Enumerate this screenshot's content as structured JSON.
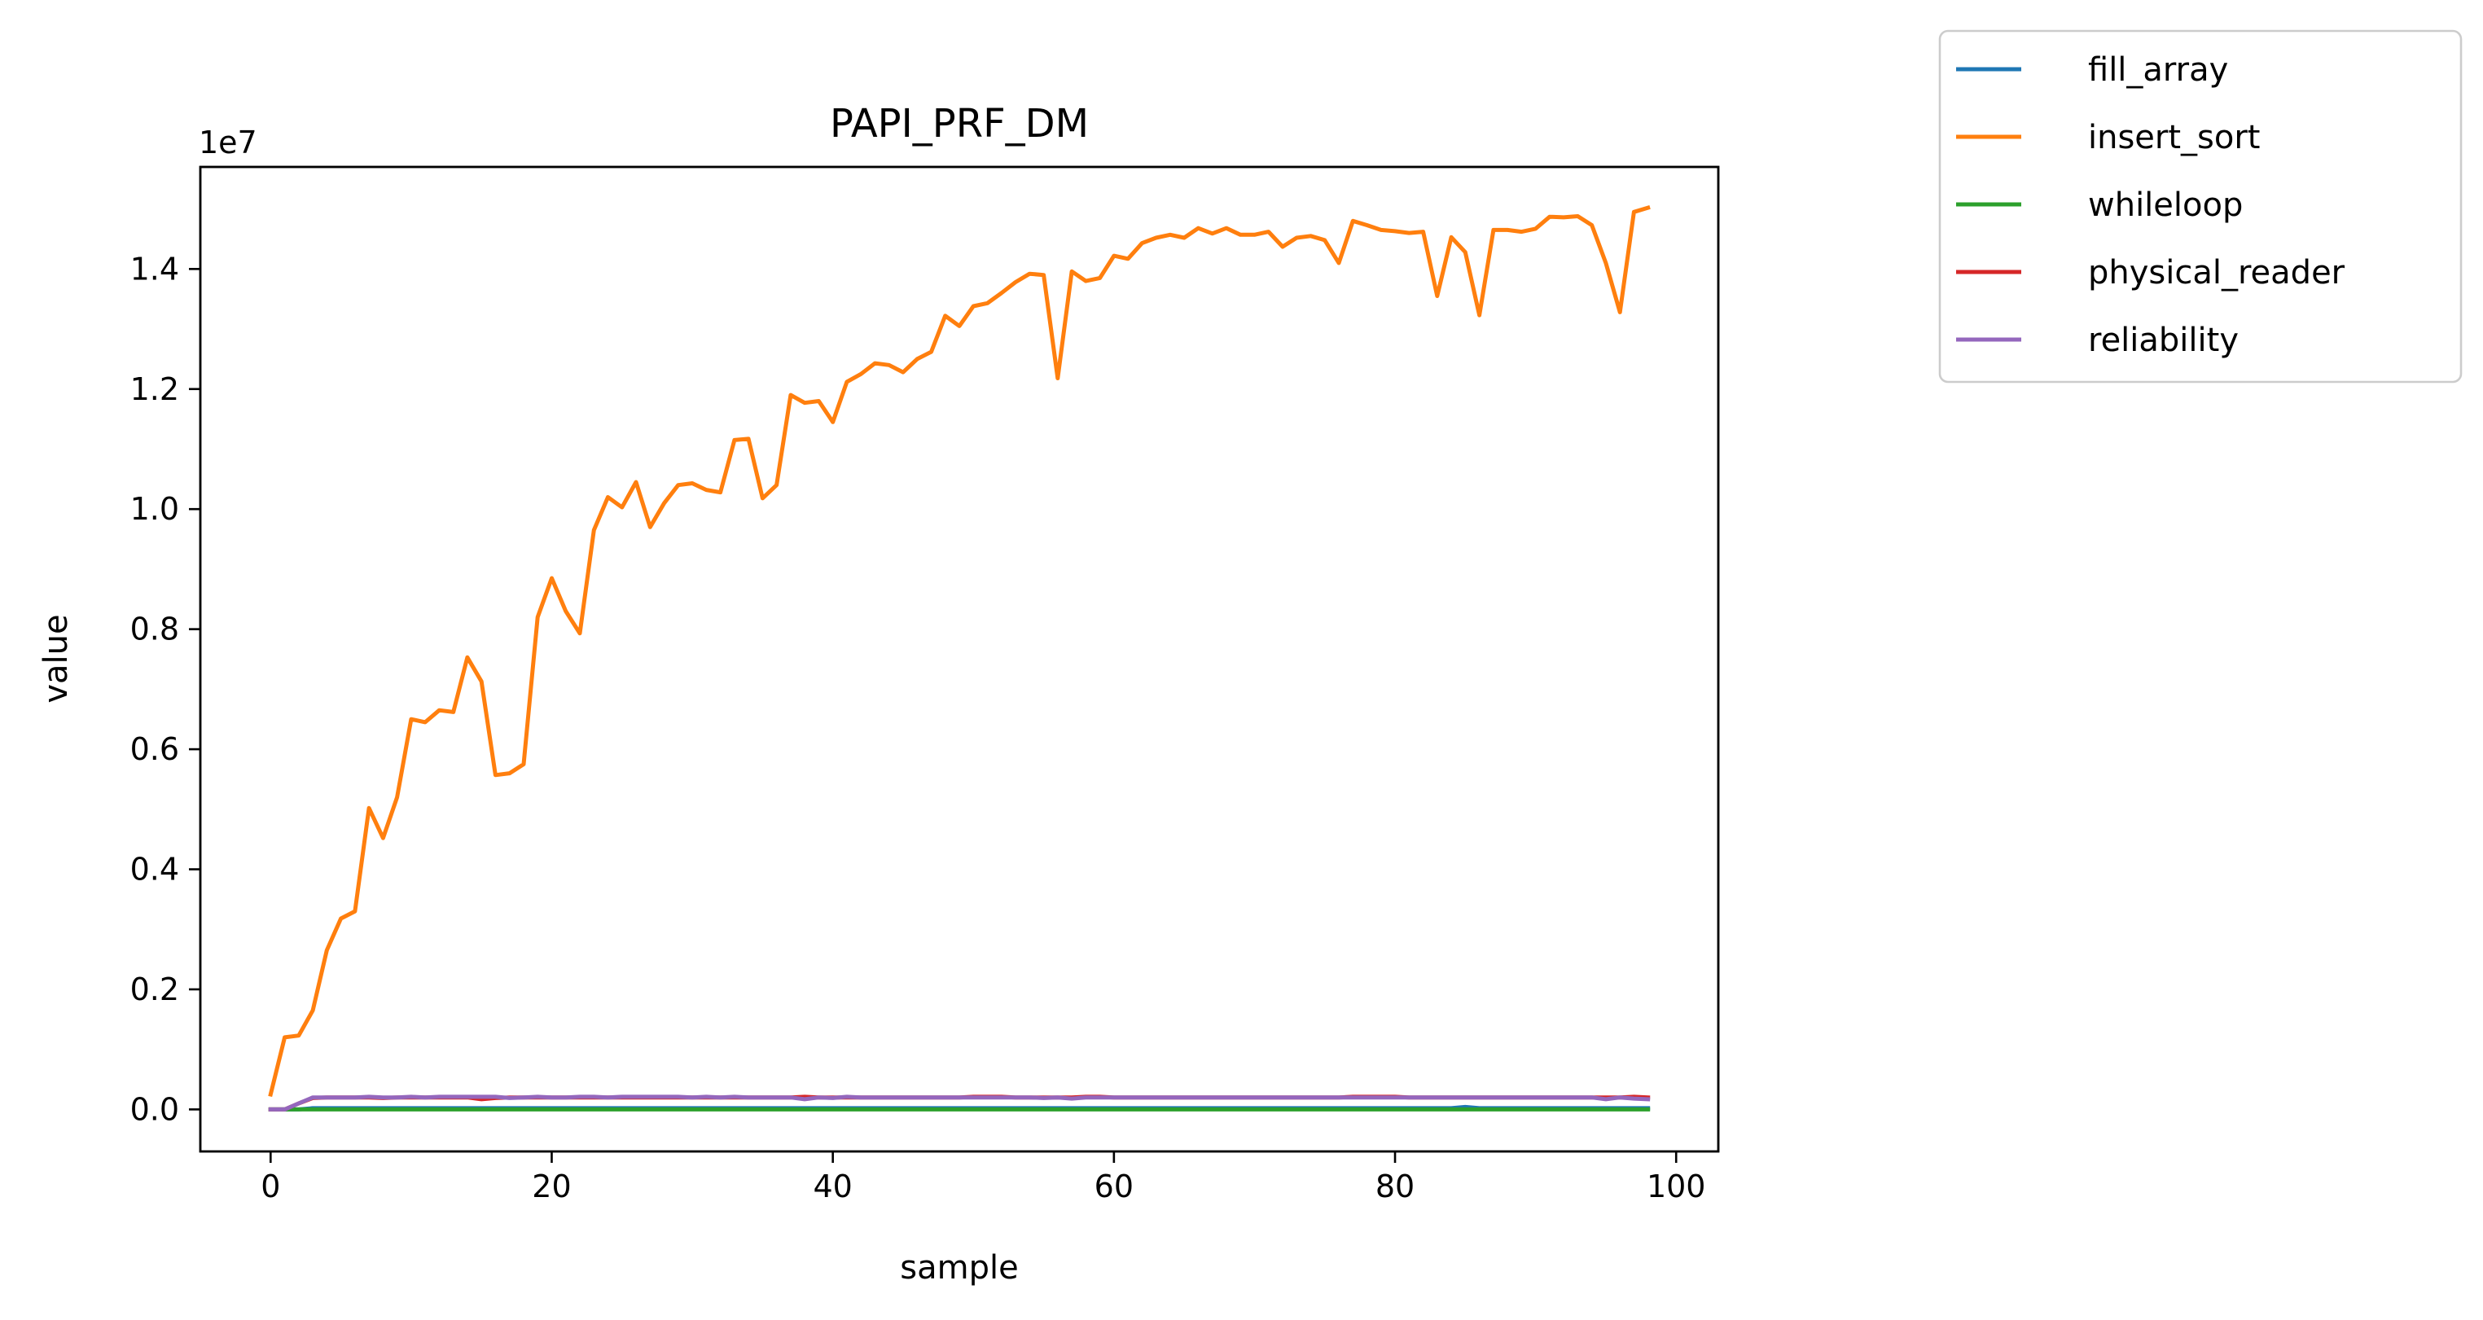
{
  "chart_data": {
    "type": "line",
    "title": "PAPI_PRF_DM",
    "xlabel": "sample",
    "ylabel": "value",
    "y_offset_label": "1e7",
    "xlim": [
      -5,
      103
    ],
    "ylim": [
      -0.07,
      1.57
    ],
    "y_scale": 10000000,
    "xticks": [
      0,
      20,
      40,
      60,
      80,
      100
    ],
    "xtick_labels": [
      "0",
      "20",
      "40",
      "60",
      "80",
      "100"
    ],
    "yticks": [
      0.0,
      0.2,
      0.4,
      0.6,
      0.8,
      1.0,
      1.2,
      1.4
    ],
    "ytick_labels": [
      "0.0",
      "0.2",
      "0.4",
      "0.6",
      "0.8",
      "1.0",
      "1.2",
      "1.4"
    ],
    "grid": false,
    "legend_position": "outside-top-right",
    "series": [
      {
        "name": "fill_array",
        "color": "#1f77b4",
        "x_start": 0,
        "x_step": 1,
        "values": [
          0.0,
          0.0,
          0.0,
          0.002,
          0.002,
          0.002,
          0.002,
          0.002,
          0.002,
          0.002,
          0.002,
          0.002,
          0.002,
          0.002,
          0.002,
          0.002,
          0.002,
          0.002,
          0.002,
          0.002,
          0.002,
          0.002,
          0.002,
          0.002,
          0.002,
          0.002,
          0.002,
          0.002,
          0.002,
          0.002,
          0.002,
          0.002,
          0.002,
          0.002,
          0.002,
          0.002,
          0.002,
          0.002,
          0.002,
          0.002,
          0.002,
          0.002,
          0.002,
          0.002,
          0.002,
          0.002,
          0.002,
          0.002,
          0.002,
          0.002,
          0.002,
          0.002,
          0.002,
          0.002,
          0.002,
          0.002,
          0.002,
          0.002,
          0.002,
          0.002,
          0.002,
          0.002,
          0.002,
          0.002,
          0.002,
          0.002,
          0.002,
          0.002,
          0.002,
          0.002,
          0.002,
          0.002,
          0.002,
          0.002,
          0.002,
          0.002,
          0.002,
          0.002,
          0.002,
          0.002,
          0.002,
          0.002,
          0.002,
          0.002,
          0.002,
          0.004,
          0.002,
          0.002,
          0.002,
          0.002,
          0.002,
          0.002,
          0.002,
          0.002,
          0.002,
          0.002,
          0.002,
          0.002,
          0.002
        ]
      },
      {
        "name": "insert_sort",
        "color": "#ff7f0e",
        "x_start": 0,
        "x_step": 1,
        "values": [
          0.025,
          0.12,
          0.123,
          0.165,
          0.265,
          0.318,
          0.33,
          0.502,
          0.452,
          0.52,
          0.65,
          0.645,
          0.665,
          0.662,
          0.753,
          0.713,
          0.557,
          0.56,
          0.575,
          0.82,
          0.885,
          0.83,
          0.793,
          0.965,
          1.02,
          1.003,
          1.045,
          0.97,
          1.01,
          1.04,
          1.043,
          1.032,
          1.028,
          1.115,
          1.117,
          1.018,
          1.04,
          1.19,
          1.177,
          1.18,
          1.145,
          1.212,
          1.225,
          1.243,
          1.24,
          1.228,
          1.25,
          1.262,
          1.322,
          1.305,
          1.338,
          1.343,
          1.36,
          1.378,
          1.392,
          1.39,
          1.218,
          1.396,
          1.38,
          1.385,
          1.422,
          1.417,
          1.443,
          1.452,
          1.457,
          1.452,
          1.468,
          1.459,
          1.468,
          1.457,
          1.457,
          1.462,
          1.437,
          1.452,
          1.455,
          1.448,
          1.41,
          1.48,
          1.473,
          1.465,
          1.463,
          1.46,
          1.462,
          1.355,
          1.453,
          1.428,
          1.323,
          1.465,
          1.465,
          1.462,
          1.467,
          1.487,
          1.486,
          1.488,
          1.473,
          1.41,
          1.328,
          1.495,
          1.502
        ]
      },
      {
        "name": "whileloop",
        "color": "#2ca02c",
        "x_start": 0,
        "x_step": 1,
        "values": [
          0.0,
          0.0,
          0.0,
          0.0,
          0.0,
          0.0,
          0.0,
          0.0,
          0.0,
          0.0,
          0.0,
          0.0,
          0.0,
          0.0,
          0.0,
          0.0,
          0.0,
          0.0,
          0.0,
          0.0,
          0.0,
          0.0,
          0.0,
          0.0,
          0.0,
          0.0,
          0.0,
          0.0,
          0.0,
          0.0,
          0.0,
          0.0,
          0.0,
          0.0,
          0.0,
          0.0,
          0.0,
          0.0,
          0.0,
          0.0,
          0.0,
          0.0,
          0.0,
          0.0,
          0.0,
          0.0,
          0.0,
          0.0,
          0.0,
          0.0,
          0.0,
          0.0,
          0.0,
          0.0,
          0.0,
          0.0,
          0.0,
          0.0,
          0.0,
          0.0,
          0.0,
          0.0,
          0.0,
          0.0,
          0.0,
          0.0,
          0.0,
          0.0,
          0.0,
          0.0,
          0.0,
          0.0,
          0.0,
          0.0,
          0.0,
          0.0,
          0.0,
          0.0,
          0.0,
          0.0,
          0.0,
          0.0,
          0.0,
          0.0,
          0.0,
          0.0,
          0.0,
          0.0,
          0.0,
          0.0,
          0.0,
          0.0,
          0.0,
          0.0,
          0.0,
          0.0,
          0.0,
          0.0,
          0.0
        ]
      },
      {
        "name": "physical_reader",
        "color": "#d62728",
        "x_start": 0,
        "x_step": 1,
        "values": [
          0.0,
          0.0,
          0.01,
          0.019,
          0.02,
          0.02,
          0.02,
          0.02,
          0.019,
          0.02,
          0.02,
          0.02,
          0.02,
          0.02,
          0.02,
          0.017,
          0.019,
          0.02,
          0.02,
          0.02,
          0.02,
          0.02,
          0.02,
          0.02,
          0.02,
          0.02,
          0.02,
          0.02,
          0.02,
          0.02,
          0.02,
          0.02,
          0.02,
          0.02,
          0.02,
          0.02,
          0.02,
          0.02,
          0.021,
          0.02,
          0.02,
          0.02,
          0.02,
          0.02,
          0.02,
          0.02,
          0.02,
          0.02,
          0.02,
          0.02,
          0.021,
          0.021,
          0.021,
          0.02,
          0.02,
          0.02,
          0.02,
          0.02,
          0.021,
          0.021,
          0.02,
          0.02,
          0.02,
          0.02,
          0.02,
          0.02,
          0.02,
          0.02,
          0.02,
          0.02,
          0.02,
          0.02,
          0.02,
          0.02,
          0.02,
          0.02,
          0.02,
          0.021,
          0.021,
          0.021,
          0.021,
          0.02,
          0.02,
          0.02,
          0.02,
          0.02,
          0.02,
          0.02,
          0.02,
          0.02,
          0.02,
          0.02,
          0.02,
          0.02,
          0.02,
          0.02,
          0.02,
          0.021,
          0.02
        ]
      },
      {
        "name": "reliability",
        "color": "#9467bd",
        "x_start": 0,
        "x_step": 1,
        "values": [
          0.0,
          0.0,
          0.01,
          0.02,
          0.02,
          0.02,
          0.02,
          0.021,
          0.02,
          0.02,
          0.021,
          0.02,
          0.021,
          0.021,
          0.021,
          0.021,
          0.021,
          0.019,
          0.02,
          0.021,
          0.02,
          0.02,
          0.021,
          0.021,
          0.02,
          0.021,
          0.021,
          0.021,
          0.021,
          0.021,
          0.02,
          0.021,
          0.02,
          0.021,
          0.02,
          0.02,
          0.02,
          0.02,
          0.017,
          0.02,
          0.019,
          0.021,
          0.02,
          0.02,
          0.02,
          0.02,
          0.02,
          0.02,
          0.02,
          0.02,
          0.02,
          0.02,
          0.02,
          0.02,
          0.02,
          0.019,
          0.02,
          0.018,
          0.02,
          0.02,
          0.02,
          0.02,
          0.02,
          0.02,
          0.02,
          0.02,
          0.02,
          0.02,
          0.02,
          0.02,
          0.02,
          0.02,
          0.02,
          0.02,
          0.02,
          0.02,
          0.02,
          0.02,
          0.02,
          0.02,
          0.02,
          0.02,
          0.02,
          0.02,
          0.02,
          0.02,
          0.02,
          0.02,
          0.02,
          0.02,
          0.02,
          0.02,
          0.02,
          0.02,
          0.02,
          0.017,
          0.02,
          0.018,
          0.017
        ]
      }
    ]
  }
}
